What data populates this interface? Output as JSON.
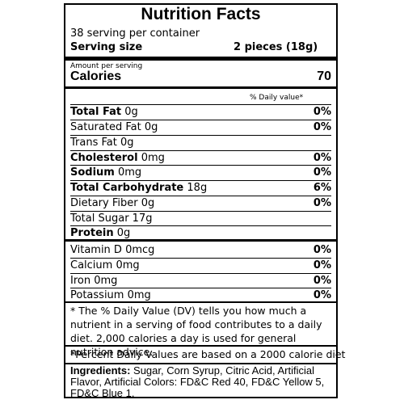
{
  "title": "Nutrition Facts",
  "servings_per_container": "38 serving per container",
  "serving_size_label": "Serving size",
  "serving_size_value": "2 pieces (18g)",
  "amount_per_serving": "Amount per serving",
  "calories_label": "Calories",
  "calories_value": "70",
  "daily_value_header": "% Daily value*",
  "nutrients": [
    {
      "bold": "Total Fat",
      "rest": " 0g",
      "dv": "0%"
    },
    {
      "bold": "",
      "rest": "Saturated Fat 0g",
      "dv": "0%"
    },
    {
      "bold": "",
      "rest": "Trans Fat 0g",
      "dv": ""
    },
    {
      "bold": "Cholesterol",
      "rest": " 0mg",
      "dv": "0%"
    },
    {
      "bold": "Sodium",
      "rest": " 0mg",
      "dv": "0%"
    },
    {
      "bold": "Total Carbohydrate",
      "rest": " 18g",
      "dv": "6%"
    },
    {
      "bold": "",
      "rest": "Dietary Fiber 0g",
      "dv": "0%"
    },
    {
      "bold": "",
      "rest": "Total Sugar 17g",
      "dv": ""
    },
    {
      "bold": "Protein",
      "rest": " 0g",
      "dv": ""
    }
  ],
  "vitamins": [
    {
      "label": "Vitamin D 0mcg",
      "dv": "0%"
    },
    {
      "label": "Calcium 0mg",
      "dv": "0%"
    },
    {
      "label": "Iron 0mg",
      "dv": "0%"
    },
    {
      "label": "Potassium 0mg",
      "dv": "0%"
    }
  ],
  "footnote": "* The % Daily Value (DV) tells you how much a nutrient in a serving of food contributes to a daily diet. 2,000 calories a day is used for general nutrition advice.",
  "percent_note": "*Percent Daily Values are based on a 2000 calorie diet",
  "ingredients_label": "Ingredients:",
  "ingredients_text": " Sugar, Corn Syrup, Citric Acid, Artificial Flavor, Artificial Colors: FD&C Red 40, FD&C Yellow 5, FD&C Blue 1."
}
